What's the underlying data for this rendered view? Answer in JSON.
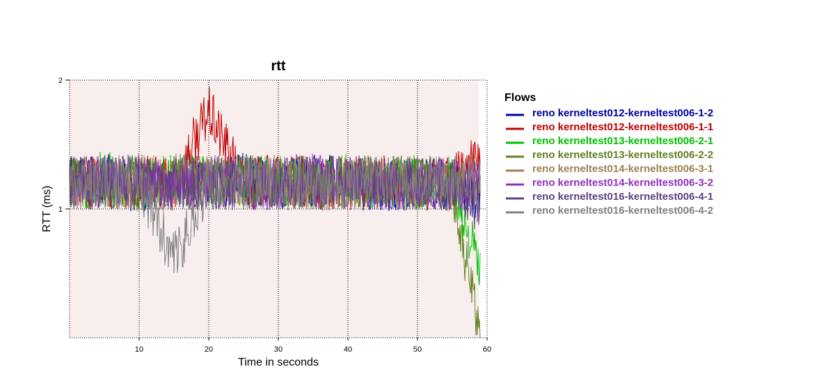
{
  "chart_data": {
    "type": "line",
    "title": "rtt",
    "xlabel": "Time in seconds",
    "ylabel": "RTT (ms)",
    "xlim": [
      0,
      60
    ],
    "ylim": [
      0,
      2
    ],
    "x_ticks": [
      10,
      20,
      30,
      40,
      50,
      60
    ],
    "y_ticks": [
      1,
      2
    ],
    "grid": true,
    "legend_title": "Flows",
    "legend_position": "right",
    "background_stripes_color": "#e8c8c8",
    "series": [
      {
        "name": "reno kerneltest012-kerneltest006-1-2",
        "color": "#00009c",
        "x": [
          0,
          5,
          10,
          15,
          20,
          25,
          30,
          35,
          40,
          45,
          50,
          55,
          59
        ],
        "y": [
          1.2,
          1.22,
          1.18,
          1.21,
          1.19,
          1.23,
          1.2,
          1.22,
          1.21,
          1.18,
          1.2,
          1.19,
          1.1
        ]
      },
      {
        "name": "reno kerneltest012-kerneltest006-1-1",
        "color": "#c00000",
        "x": [
          0,
          5,
          10,
          15,
          20,
          25,
          30,
          35,
          40,
          45,
          50,
          55,
          59
        ],
        "y": [
          1.22,
          1.19,
          1.21,
          1.2,
          1.75,
          1.2,
          1.22,
          1.19,
          1.2,
          1.21,
          1.18,
          1.2,
          1.4
        ]
      },
      {
        "name": "reno kerneltest013-kerneltest006-2-1",
        "color": "#00c000",
        "x": [
          0,
          5,
          10,
          15,
          20,
          25,
          30,
          35,
          40,
          45,
          50,
          55,
          59
        ],
        "y": [
          1.18,
          1.24,
          1.2,
          1.22,
          1.2,
          1.21,
          1.23,
          1.2,
          1.22,
          1.2,
          1.21,
          1.22,
          0.5
        ]
      },
      {
        "name": "reno kerneltest013-kerneltest006-2-2",
        "color": "#608020",
        "x": [
          0,
          5,
          10,
          15,
          20,
          25,
          30,
          35,
          40,
          45,
          50,
          55,
          59
        ],
        "y": [
          1.21,
          1.2,
          1.19,
          1.23,
          1.21,
          1.2,
          1.19,
          1.21,
          1.2,
          1.22,
          1.2,
          1.18,
          0.0
        ]
      },
      {
        "name": "reno kerneltest014-kerneltest006-3-1",
        "color": "#a08050",
        "x": [
          0,
          5,
          10,
          15,
          20,
          25,
          30,
          35,
          40,
          45,
          50,
          55,
          59
        ],
        "y": [
          1.2,
          1.21,
          1.22,
          1.19,
          1.2,
          1.22,
          1.21,
          1.2,
          1.19,
          1.21,
          1.22,
          1.2,
          1.2
        ]
      },
      {
        "name": "reno kerneltest014-kerneltest006-3-2",
        "color": "#9030c0",
        "x": [
          0,
          5,
          10,
          15,
          20,
          25,
          30,
          35,
          40,
          45,
          50,
          55,
          59
        ],
        "y": [
          1.19,
          1.22,
          1.2,
          1.21,
          1.22,
          1.19,
          1.2,
          1.23,
          1.2,
          1.19,
          1.21,
          1.2,
          1.15
        ]
      },
      {
        "name": "reno kerneltest016-kerneltest006-4-1",
        "color": "#604080",
        "x": [
          0,
          5,
          10,
          15,
          20,
          25,
          30,
          35,
          40,
          45,
          50,
          55,
          59
        ],
        "y": [
          1.2,
          1.2,
          1.21,
          1.2,
          1.19,
          1.21,
          1.2,
          1.2,
          1.21,
          1.2,
          1.2,
          1.21,
          1.0
        ]
      },
      {
        "name": "reno kerneltest016-kerneltest006-4-2",
        "color": "#808080",
        "x": [
          0,
          5,
          10,
          15,
          20,
          25,
          30,
          35,
          40,
          45,
          50,
          55,
          59
        ],
        "y": [
          1.21,
          1.19,
          1.2,
          0.6,
          1.2,
          1.2,
          1.21,
          1.19,
          1.2,
          1.21,
          1.19,
          1.2,
          1.2
        ]
      }
    ]
  }
}
